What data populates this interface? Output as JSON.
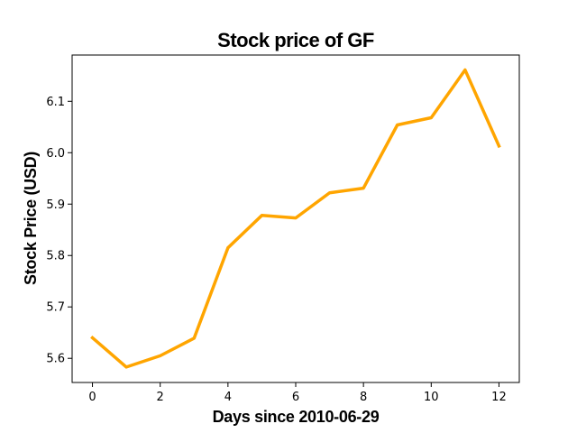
{
  "chart_data": {
    "type": "line",
    "title": "Stock price of GF",
    "xlabel": "Days since 2010-06-29",
    "ylabel": "Stock Price (USD)",
    "x": [
      0,
      1,
      2,
      3,
      4,
      5,
      6,
      7,
      8,
      9,
      10,
      11,
      12
    ],
    "series": [
      {
        "values": [
          5.64,
          5.583,
          5.605,
          5.639,
          5.815,
          5.878,
          5.873,
          5.922,
          5.931,
          6.054,
          6.068,
          6.161,
          6.013
        ],
        "color": "#FFA500"
      }
    ],
    "xlim": [
      -0.6,
      12.6
    ],
    "ylim": [
      5.553,
      6.19
    ],
    "xticks": [
      0,
      2,
      4,
      6,
      8,
      10,
      12
    ],
    "yticks": [
      5.6,
      5.7,
      5.8,
      5.9,
      6.0,
      6.1
    ],
    "xtick_labels": [
      "0",
      "2",
      "4",
      "6",
      "8",
      "10",
      "12"
    ],
    "ytick_labels": [
      "5.6",
      "5.7",
      "5.8",
      "5.9",
      "6.0",
      "6.1"
    ],
    "grid": false,
    "legend": "none"
  }
}
